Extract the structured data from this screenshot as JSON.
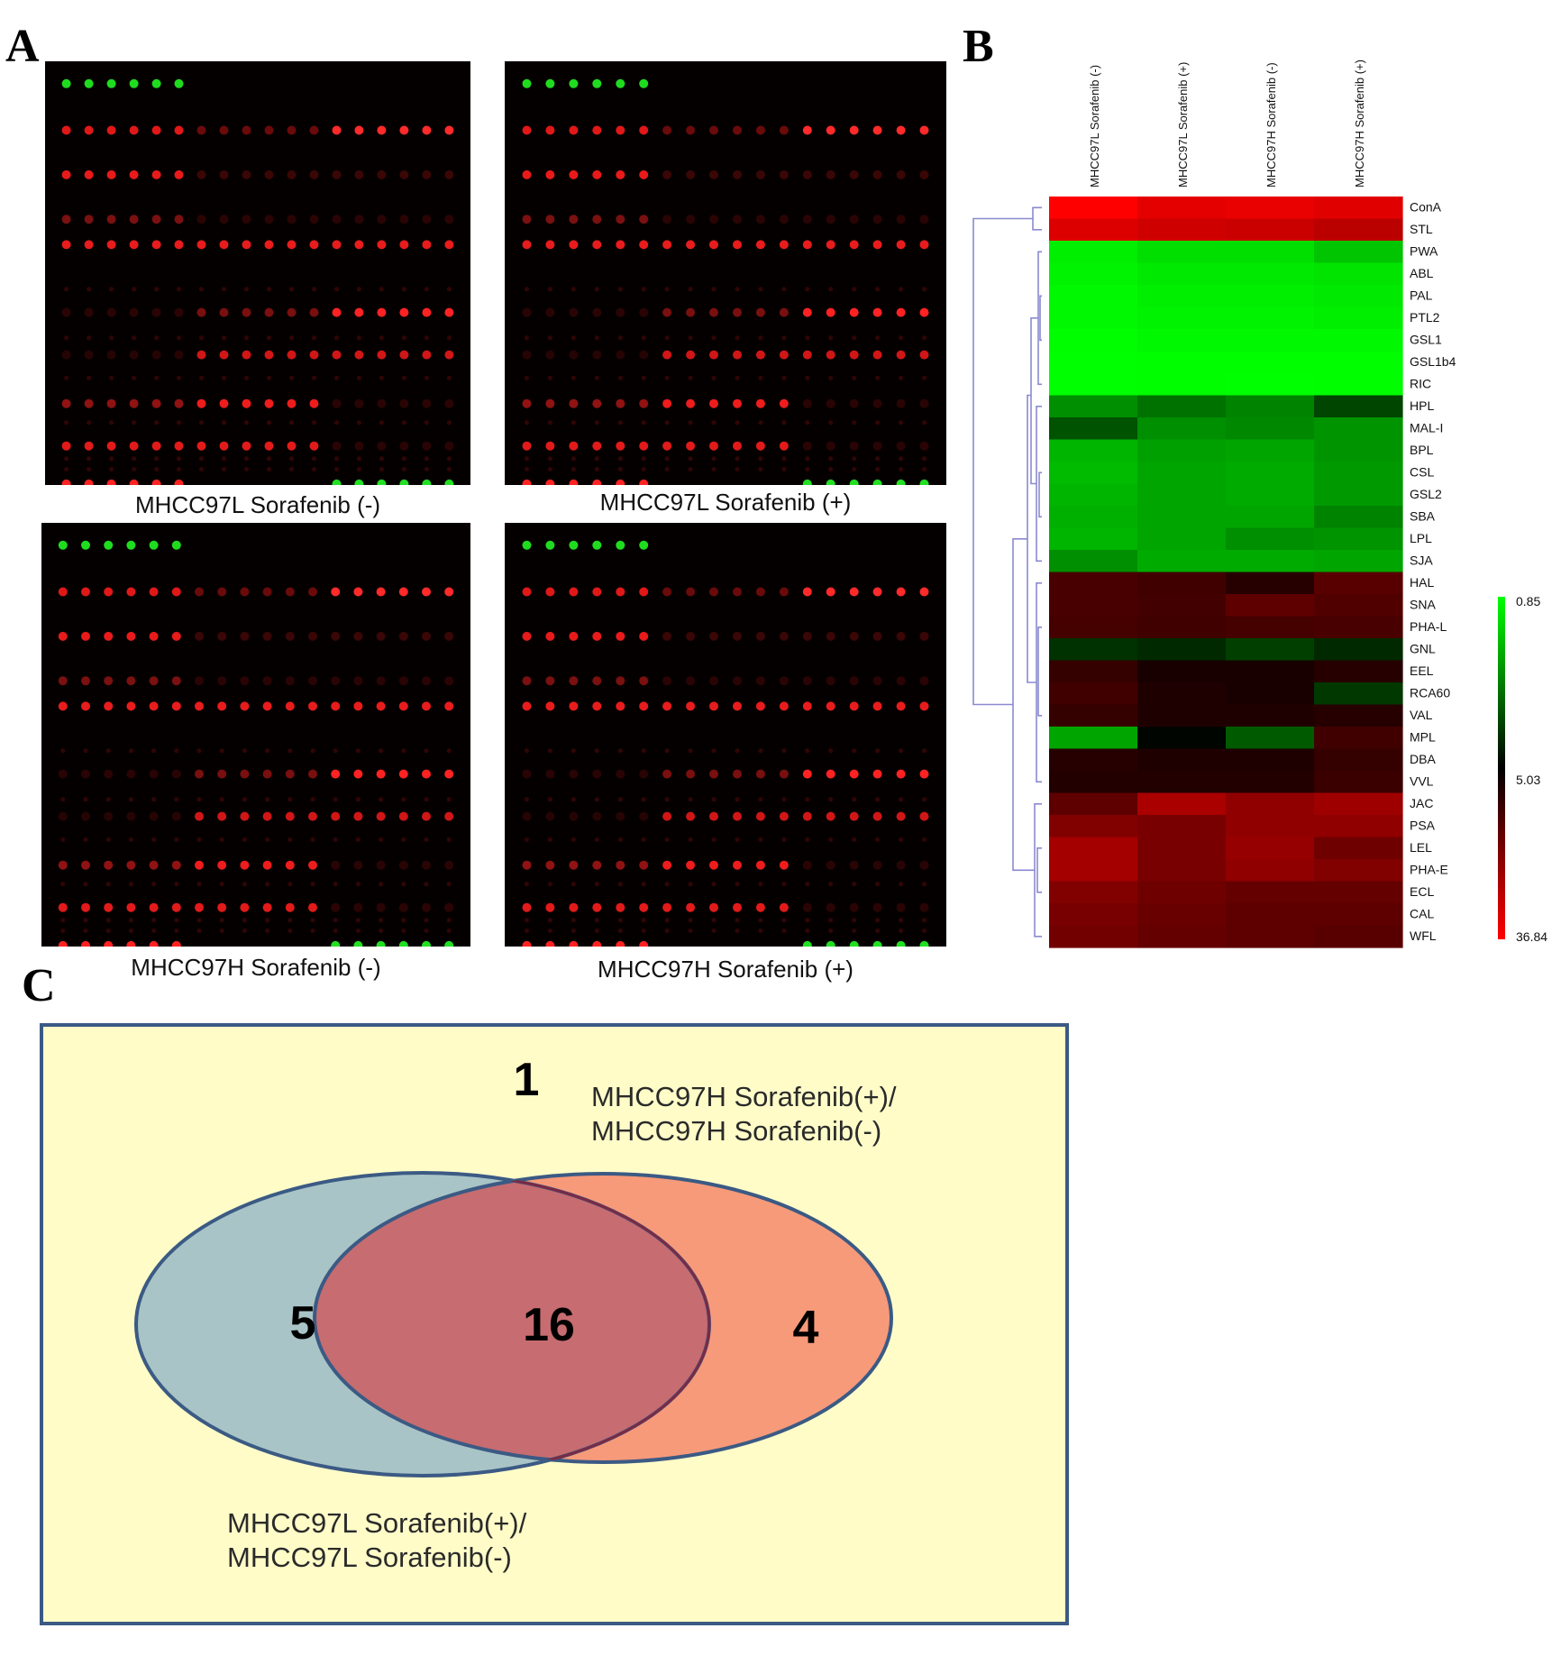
{
  "panel_labels": {
    "a": "A",
    "b": "B",
    "c": "C"
  },
  "panel_a": {
    "arrays": [
      {
        "caption": "MHCC97L Sorafenib (-)"
      },
      {
        "caption": "MHCC97L Sorafenib (+)"
      },
      {
        "caption": "MHCC97H Sorafenib (-)"
      },
      {
        "caption": "MHCC97H Sorafenib (+)"
      }
    ]
  },
  "colors": {
    "green": "#00ff00",
    "black": "#000000",
    "red": "#ff0000",
    "venn_bg": "#fffcc8",
    "venn_border": "#3b5a84",
    "left_ellipse": "#a9c4c6",
    "right_ellipse": "#f79a7a",
    "overlap": "#c76c70"
  },
  "chart_data": {
    "type": "heatmap",
    "columns": [
      "MHCC97L Sorafenib (-)",
      "MHCC97L Sorafenib (+)",
      "MHCC97H Sorafenib (-)",
      "MHCC97H Sorafenib (+)"
    ],
    "rows": [
      "ConA",
      "STL",
      "PWA",
      "ABL",
      "PAL",
      "PTL2",
      "GSL1",
      "GSL1b4",
      "RIC",
      "HPL",
      "MAL-I",
      "BPL",
      "CSL",
      "GSL2",
      "SBA",
      "LPL",
      "SJA",
      "HAL",
      "SNA",
      "PHA-L",
      "GNL",
      "EEL",
      "RCA60",
      "VAL",
      "MPL",
      "DBA",
      "VVL",
      "JAC",
      "PSA",
      "LEL",
      "PHA-E",
      "ECL",
      "CAL",
      "WFL"
    ],
    "values": [
      [
        36.8,
        30.0,
        31.0,
        29.0
      ],
      [
        28.0,
        25.0,
        24.0,
        21.0
      ],
      [
        1.2,
        1.5,
        1.5,
        2.0
      ],
      [
        1.1,
        1.3,
        1.3,
        1.4
      ],
      [
        1.0,
        1.2,
        1.2,
        1.3
      ],
      [
        1.0,
        1.1,
        1.1,
        1.2
      ],
      [
        0.9,
        1.0,
        1.0,
        1.0
      ],
      [
        0.85,
        0.9,
        0.9,
        0.9
      ],
      [
        0.85,
        0.9,
        0.85,
        0.9
      ],
      [
        3.0,
        3.5,
        3.2,
        4.2
      ],
      [
        4.0,
        3.0,
        3.1,
        2.9
      ],
      [
        2.3,
        2.7,
        2.6,
        2.9
      ],
      [
        2.2,
        2.6,
        2.5,
        2.8
      ],
      [
        2.3,
        2.6,
        2.5,
        2.8
      ],
      [
        2.4,
        2.6,
        2.6,
        3.2
      ],
      [
        2.3,
        2.6,
        3.0,
        2.9
      ],
      [
        3.0,
        2.5,
        2.5,
        2.6
      ],
      [
        7.0,
        6.5,
        5.5,
        8.0
      ],
      [
        7.0,
        6.6,
        8.5,
        7.5
      ],
      [
        6.8,
        6.5,
        6.8,
        7.0
      ],
      [
        4.5,
        4.6,
        4.3,
        4.6
      ],
      [
        6.0,
        5.2,
        5.2,
        5.5
      ],
      [
        6.5,
        5.3,
        5.2,
        4.4
      ],
      [
        6.0,
        5.3,
        5.3,
        5.5
      ],
      [
        2.6,
        5.0,
        3.9,
        6.5
      ],
      [
        5.5,
        5.3,
        5.3,
        6.0
      ],
      [
        5.4,
        5.4,
        5.4,
        6.2
      ],
      [
        8.5,
        18.0,
        14.0,
        16.0
      ],
      [
        12.0,
        11.0,
        14.0,
        14.0
      ],
      [
        17.0,
        11.0,
        15.0,
        10.0
      ],
      [
        17.0,
        11.0,
        14.0,
        12.0
      ],
      [
        12.0,
        10.0,
        9.0,
        9.0
      ],
      [
        11.0,
        9.5,
        8.5,
        8.5
      ],
      [
        10.5,
        9.0,
        8.5,
        8.0
      ]
    ],
    "scale": {
      "min": 0.85,
      "mid": 5.03,
      "max": 36.84,
      "labels": [
        "0.85",
        "5.03",
        "36.84"
      ]
    },
    "dendrogram": "rows"
  },
  "venn": {
    "outside_count": "1",
    "left_only": "5",
    "both": "16",
    "right_only": "4",
    "right_label": [
      "MHCC97H Sorafenib(+)/",
      "MHCC97H Sorafenib(-)"
    ],
    "left_label": [
      "MHCC97L Sorafenib(+)/",
      "MHCC97L Sorafenib(-)"
    ]
  }
}
